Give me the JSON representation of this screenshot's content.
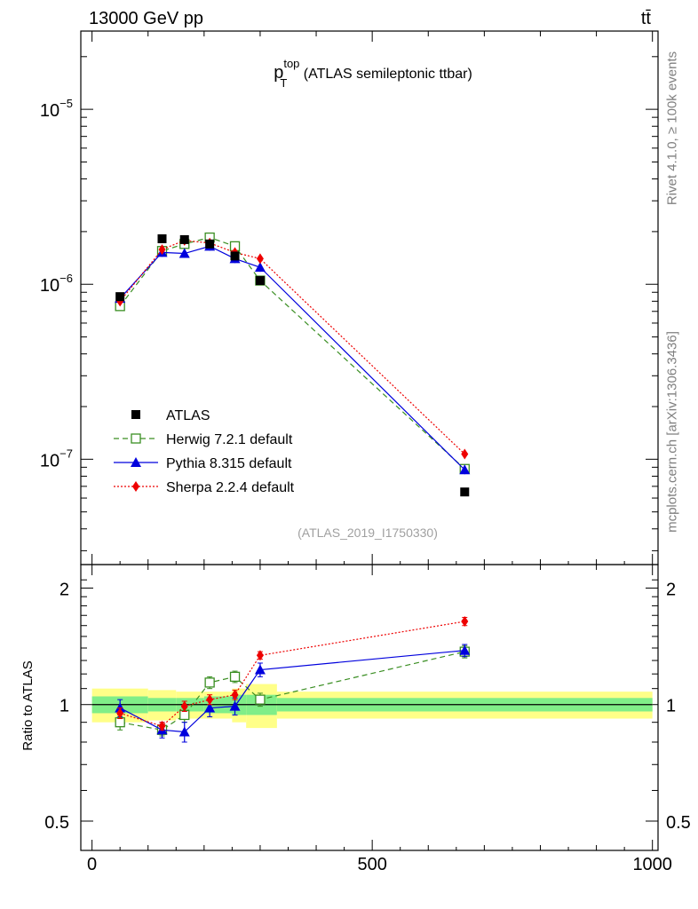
{
  "header": {
    "left_label": "13000 GeV pp",
    "right_label": "tt̄"
  },
  "side_labels": {
    "rivet": "Rivet 4.1.0, ≥ 100k events",
    "mcplots": "mcplots.cern.ch [arXiv:1306.3436]"
  },
  "chart_data": {
    "type": "line",
    "title_main": "p",
    "title_sup": "top",
    "title_sub": "T",
    "title_rest": " (ATLAS semileptonic ttbar)",
    "watermark": "(ATLAS_2019_I1750330)",
    "ratio_ylabel": "Ratio to ATLAS",
    "xlim": [
      -20,
      1010
    ],
    "main_ylim": [
      2.5e-08,
      2.8e-05
    ],
    "ratio_ylim": [
      0.42,
      2.3
    ],
    "x_ticks": [
      0,
      500,
      1000
    ],
    "x_tick_labels": [
      "0",
      "500",
      "1000"
    ],
    "main_y_ticks": [
      1e-05,
      1e-06,
      1e-07
    ],
    "main_y_tick_labels": [
      {
        "base": "10",
        "exp": "−5"
      },
      {
        "base": "10",
        "exp": "−6"
      },
      {
        "base": "10",
        "exp": "−7"
      }
    ],
    "ratio_y_ticks": [
      0.5,
      1,
      2
    ],
    "ratio_y_tick_labels": [
      "0.5",
      "1",
      "2"
    ],
    "bins": [
      [
        0,
        100
      ],
      [
        100,
        150
      ],
      [
        150,
        200
      ],
      [
        200,
        250
      ],
      [
        250,
        275
      ],
      [
        275,
        330
      ],
      [
        330,
        1000
      ]
    ],
    "band_inner": [
      0.05,
      0.04,
      0.04,
      0.05,
      0.06,
      0.06,
      0.04
    ],
    "band_outer": [
      0.1,
      0.09,
      0.08,
      0.08,
      0.1,
      0.13,
      0.08
    ],
    "data": {
      "name": "ATLAS",
      "x": [
        50,
        125,
        165,
        210,
        255,
        300,
        665
      ],
      "y": [
        8.5e-07,
        1.82e-06,
        1.8e-06,
        1.7e-06,
        1.45e-06,
        1.05e-06,
        6.5e-08
      ],
      "color": "#000000"
    },
    "series": [
      {
        "name": "Herwig 7.2.1 default",
        "x": [
          50,
          125,
          165,
          210,
          255,
          300,
          665
        ],
        "y": [
          7.5e-07,
          1.55e-06,
          1.7e-06,
          1.85e-06,
          1.65e-06,
          1.05e-06,
          8.8e-08
        ],
        "ratio": [
          0.9,
          0.86,
          0.94,
          1.14,
          1.18,
          1.03,
          1.37
        ],
        "ratio_err": [
          0.04,
          0.03,
          0.04,
          0.04,
          0.04,
          0.04,
          0.05
        ],
        "color": "#3a8e22",
        "marker": "square-open",
        "dash": "6,4"
      },
      {
        "name": "Pythia 8.315 default",
        "x": [
          50,
          125,
          165,
          210,
          255,
          300,
          665
        ],
        "y": [
          8.3e-07,
          1.52e-06,
          1.5e-06,
          1.65e-06,
          1.4e-06,
          1.25e-06,
          8.7e-08
        ],
        "ratio": [
          0.98,
          0.86,
          0.85,
          0.98,
          0.99,
          1.23,
          1.38
        ],
        "ratio_err": [
          0.05,
          0.04,
          0.05,
          0.05,
          0.05,
          0.05,
          0.05
        ],
        "color": "#0000dd",
        "marker": "triangle",
        "dash": ""
      },
      {
        "name": "Sherpa 2.2.4 default",
        "x": [
          50,
          125,
          165,
          210,
          255,
          300,
          665
        ],
        "y": [
          8e-07,
          1.58e-06,
          1.78e-06,
          1.72e-06,
          1.52e-06,
          1.4e-06,
          1.07e-07
        ],
        "ratio": [
          0.95,
          0.88,
          0.99,
          1.03,
          1.06,
          1.34,
          1.64
        ],
        "ratio_err": [
          0.03,
          0.02,
          0.03,
          0.03,
          0.03,
          0.03,
          0.04
        ],
        "color": "#ee0000",
        "marker": "diamond",
        "dash": "2,2"
      }
    ],
    "band_colors": {
      "inner": "#80ee88",
      "outer": "#ffff88"
    }
  }
}
